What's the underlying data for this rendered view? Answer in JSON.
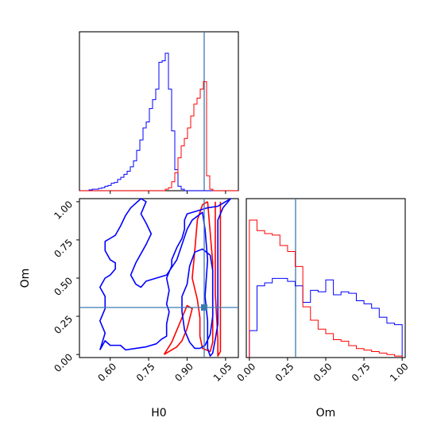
{
  "chart_data": {
    "type": "corner",
    "parameters": [
      "H0",
      "Om"
    ],
    "truth": {
      "H0": 0.99,
      "Om": 0.3
    },
    "colors": {
      "series_a": "#0000ff",
      "series_b": "#ff0000",
      "truth": "#3b7ab0"
    },
    "axes": {
      "H0": {
        "label": "H0",
        "range": [
          0.48,
          1.1
        ],
        "ticks": [
          "0.60",
          "0.75",
          "0.90",
          "1.05"
        ],
        "tick_values": [
          0.6,
          0.75,
          0.9,
          1.05
        ]
      },
      "Om": {
        "label": "Om",
        "range": [
          -0.02,
          1.02
        ],
        "ticks": [
          "0.00",
          "0.25",
          "0.50",
          "0.75",
          "1.00"
        ],
        "tick_values": [
          0.0,
          0.25,
          0.5,
          0.75,
          1.0
        ]
      }
    },
    "hist_H0": {
      "bin_start": 0.48,
      "bin_width": 0.0124,
      "series_a": [
        0,
        0,
        0,
        0.005,
        0.01,
        0.01,
        0.015,
        0.02,
        0.03,
        0.035,
        0.05,
        0.055,
        0.075,
        0.09,
        0.11,
        0.13,
        0.16,
        0.2,
        0.27,
        0.34,
        0.42,
        0.46,
        0.55,
        0.61,
        0.68,
        0.86,
        0.87,
        0.92,
        0.68,
        0.4,
        0.14,
        0.03,
        0.01,
        0,
        0,
        0,
        0,
        0,
        0,
        0,
        0,
        0,
        0,
        0,
        0,
        0,
        0,
        0,
        0,
        0
      ],
      "series_b": [
        0,
        0,
        0,
        0,
        0,
        0,
        0,
        0,
        0,
        0,
        0,
        0,
        0,
        0,
        0,
        0,
        0,
        0,
        0,
        0,
        0,
        0,
        0,
        0,
        0,
        0,
        0,
        0.01,
        0.02,
        0.06,
        0.12,
        0.22,
        0.3,
        0.35,
        0.42,
        0.5,
        0.58,
        0.62,
        0.68,
        0.73,
        0.1,
        0.01,
        0,
        0,
        0,
        0,
        0,
        0,
        0,
        0
      ]
    },
    "hist_Om": {
      "bin_start": 0.0,
      "bin_width": 0.05,
      "series_a": [
        0.18,
        0.48,
        0.5,
        0.53,
        0.53,
        0.51,
        0.48,
        0.37,
        0.45,
        0.44,
        0.52,
        0.42,
        0.44,
        0.43,
        0.38,
        0.36,
        0.33,
        0.27,
        0.23,
        0.22
      ],
      "series_b": [
        0.92,
        0.85,
        0.83,
        0.82,
        0.75,
        0.71,
        0.61,
        0.34,
        0.25,
        0.19,
        0.16,
        0.12,
        0.11,
        0.08,
        0.06,
        0.05,
        0.04,
        0.03,
        0.02,
        0.01
      ]
    },
    "contours_2d": {
      "series_a": [
        [
          [
            0.56,
            0.03
          ],
          [
            0.58,
            0.09
          ],
          [
            0.6,
            0.06
          ],
          [
            0.62,
            0.06
          ],
          [
            0.64,
            0.06
          ],
          [
            0.66,
            0.03
          ],
          [
            0.7,
            0.04
          ],
          [
            0.74,
            0.05
          ],
          [
            0.78,
            0.07
          ],
          [
            0.8,
            0.1
          ],
          [
            0.82,
            0.12
          ],
          [
            0.82,
            0.2
          ],
          [
            0.83,
            0.28
          ],
          [
            0.82,
            0.33
          ],
          [
            0.83,
            0.42
          ],
          [
            0.82,
            0.5
          ],
          [
            0.84,
            0.58
          ],
          [
            0.84,
            0.62
          ],
          [
            0.86,
            0.7
          ],
          [
            0.88,
            0.76
          ],
          [
            0.89,
            0.82
          ],
          [
            0.89,
            0.88
          ],
          [
            0.9,
            0.92
          ],
          [
            0.94,
            0.94
          ],
          [
            0.98,
            0.96
          ],
          [
            1.02,
            0.97
          ],
          [
            1.05,
            1.0
          ],
          [
            1.07,
            1.03
          ],
          [
            1.04,
            0.96
          ],
          [
            1.02,
            0.88
          ],
          [
            1.02,
            0.6
          ],
          [
            1.02,
            0.36
          ],
          [
            1.02,
            0.2
          ],
          [
            1.01,
            0.1
          ],
          [
            1.0,
            0.01
          ],
          [
            0.99,
            -0.01
          ],
          [
            0.98,
            0.04
          ],
          [
            0.98,
            0.22
          ],
          [
            0.97,
            0.38
          ],
          [
            0.98,
            0.62
          ],
          [
            0.97,
            0.82
          ],
          [
            0.96,
            0.93
          ],
          [
            0.92,
            0.88
          ],
          [
            0.9,
            0.82
          ],
          [
            0.88,
            0.72
          ],
          [
            0.86,
            0.62
          ],
          [
            0.84,
            0.57
          ],
          [
            0.82,
            0.52
          ],
          [
            0.74,
            0.48
          ],
          [
            0.72,
            0.44
          ],
          [
            0.7,
            0.46
          ],
          [
            0.68,
            0.52
          ],
          [
            0.7,
            0.6
          ],
          [
            0.74,
            0.72
          ],
          [
            0.76,
            0.79
          ],
          [
            0.74,
            0.86
          ],
          [
            0.72,
            0.92
          ],
          [
            0.74,
            1.0
          ],
          [
            0.72,
            1.02
          ],
          [
            0.68,
            0.96
          ],
          [
            0.66,
            0.91
          ],
          [
            0.64,
            0.84
          ],
          [
            0.62,
            0.78
          ],
          [
            0.6,
            0.76
          ],
          [
            0.58,
            0.74
          ],
          [
            0.58,
            0.68
          ],
          [
            0.6,
            0.62
          ],
          [
            0.62,
            0.6
          ],
          [
            0.62,
            0.56
          ],
          [
            0.6,
            0.52
          ],
          [
            0.58,
            0.5
          ],
          [
            0.56,
            0.44
          ],
          [
            0.58,
            0.38
          ],
          [
            0.58,
            0.3
          ],
          [
            0.56,
            0.22
          ],
          [
            0.58,
            0.14
          ],
          [
            0.56,
            0.03
          ]
        ],
        [
          [
            0.95,
            0.04
          ],
          [
            0.97,
            0.06
          ],
          [
            0.99,
            0.13
          ],
          [
            1.0,
            0.25
          ],
          [
            1.0,
            0.4
          ],
          [
            1.0,
            0.55
          ],
          [
            0.99,
            0.65
          ],
          [
            0.96,
            0.69
          ],
          [
            0.93,
            0.67
          ],
          [
            0.91,
            0.58
          ],
          [
            0.9,
            0.46
          ],
          [
            0.88,
            0.38
          ],
          [
            0.88,
            0.28
          ],
          [
            0.89,
            0.16
          ],
          [
            0.91,
            0.08
          ],
          [
            0.93,
            0.04
          ],
          [
            0.95,
            0.04
          ]
        ]
      ],
      "series_b": [
        [
          [
            0.98,
            1.0
          ],
          [
            0.99,
            0.8
          ],
          [
            1.0,
            0.6
          ],
          [
            1.0,
            0.4
          ],
          [
            1.0,
            0.22
          ],
          [
            1.0,
            0.08
          ],
          [
            0.99,
            0.02
          ],
          [
            0.96,
            0.04
          ],
          [
            0.95,
            0.12
          ],
          [
            0.95,
            0.24
          ],
          [
            0.94,
            0.36
          ],
          [
            0.92,
            0.5
          ],
          [
            0.93,
            0.68
          ],
          [
            0.94,
            0.88
          ],
          [
            0.96,
            0.98
          ],
          [
            0.98,
            1.0
          ]
        ],
        [
          [
            1.01,
            1.0
          ],
          [
            1.01,
            0.7
          ],
          [
            1.01,
            0.4
          ],
          [
            1.02,
            0.1
          ],
          [
            1.02,
            -0.01
          ],
          [
            1.03,
            0.02
          ],
          [
            1.03,
            0.4
          ],
          [
            1.03,
            0.8
          ],
          [
            1.03,
            1.0
          ]
        ],
        [
          [
            0.81,
            0.0
          ],
          [
            0.86,
            0.05
          ],
          [
            0.88,
            0.09
          ],
          [
            0.9,
            0.17
          ],
          [
            0.92,
            0.3
          ],
          [
            0.9,
            0.32
          ],
          [
            0.86,
            0.16
          ],
          [
            0.84,
            0.08
          ],
          [
            0.81,
            0.0
          ]
        ]
      ]
    }
  }
}
